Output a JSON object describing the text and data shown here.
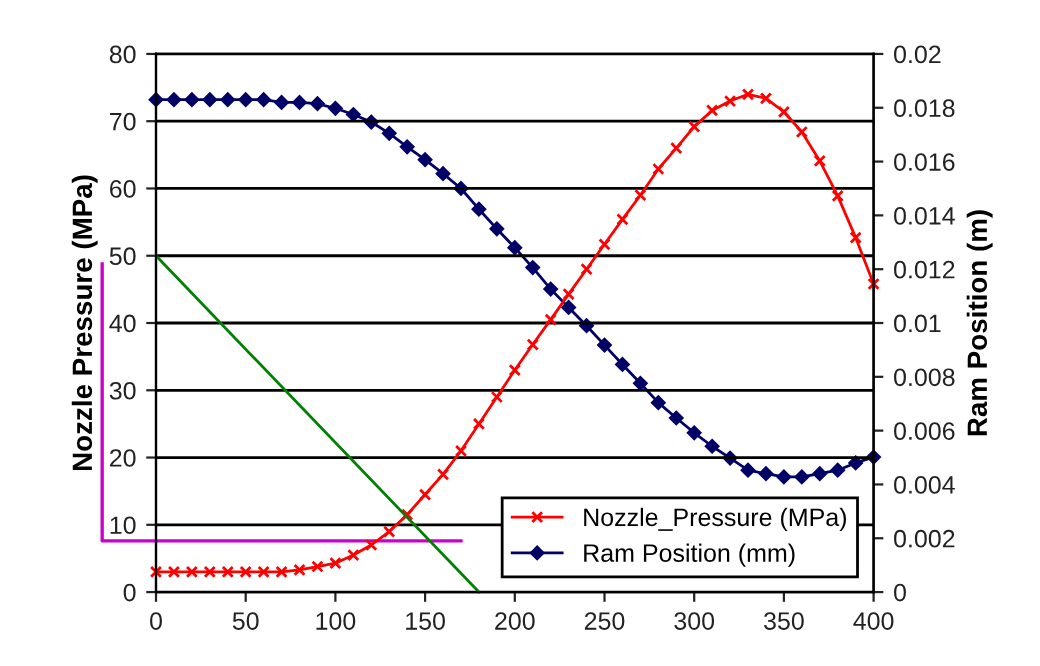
{
  "chart_data": {
    "type": "line",
    "ylabel": "Nozzle Pressure (MPa)",
    "y2label": "Ram Position (m)",
    "x": [
      0,
      10,
      20,
      30,
      40,
      50,
      60,
      70,
      80,
      90,
      100,
      110,
      120,
      130,
      140,
      150,
      160,
      170,
      180,
      190,
      200,
      210,
      220,
      230,
      240,
      250,
      260,
      270,
      280,
      290,
      300,
      310,
      320,
      330,
      340,
      350,
      360,
      370,
      380,
      390,
      400
    ],
    "series": [
      {
        "name": "Nozzle_Pressure (MPa)",
        "color": "#ff0000",
        "marker": "cross",
        "values": [
          3,
          3,
          3,
          3,
          3,
          3,
          3,
          3,
          3.3,
          3.8,
          4.3,
          5.5,
          7,
          9,
          11.5,
          14.5,
          17.5,
          21,
          25,
          29,
          33,
          36.8,
          40.5,
          44.3,
          48,
          51.7,
          55.4,
          59,
          62.9,
          66,
          69.2,
          71.6,
          73,
          74,
          73.4,
          71.4,
          68.4,
          64.1,
          58.9,
          52.7,
          45.8
        ]
      },
      {
        "name": "Ram Position (mm)",
        "color": "#000066",
        "marker": "diamond",
        "axis": "y2",
        "values": [
          0.0183,
          0.0183,
          0.0183,
          0.0183,
          0.0183,
          0.0183,
          0.0183,
          0.0182,
          0.0182,
          0.01815,
          0.01798,
          0.01775,
          0.01747,
          0.01705,
          0.01655,
          0.01607,
          0.01555,
          0.015,
          0.01423,
          0.0135,
          0.0128,
          0.01206,
          0.01126,
          0.01058,
          0.0099,
          0.00918,
          0.00846,
          0.00776,
          0.00704,
          0.00647,
          0.00592,
          0.00542,
          0.00498,
          0.00453,
          0.0044,
          0.00428,
          0.00428,
          0.0044,
          0.00453,
          0.0048,
          0.00502
        ]
      },
      {
        "type": "line",
        "color": "#008000",
        "marker": "none",
        "x": [
          0,
          180
        ],
        "values": [
          50,
          0
        ]
      }
    ],
    "xlim": [
      0,
      400
    ],
    "xticks": [
      0,
      50,
      100,
      150,
      200,
      250,
      300,
      350,
      400
    ],
    "ylim": [
      0,
      80
    ],
    "yticks": [
      0,
      10,
      20,
      30,
      40,
      50,
      60,
      70,
      80
    ],
    "y2lim": [
      0,
      0.02
    ],
    "y2ticks": [
      0,
      0.002,
      0.004,
      0.006,
      0.008,
      0.01,
      0.012,
      0.014,
      0.016,
      0.018,
      0.02
    ],
    "grid": "y",
    "legend": "lower right",
    "line_style": "solid"
  }
}
